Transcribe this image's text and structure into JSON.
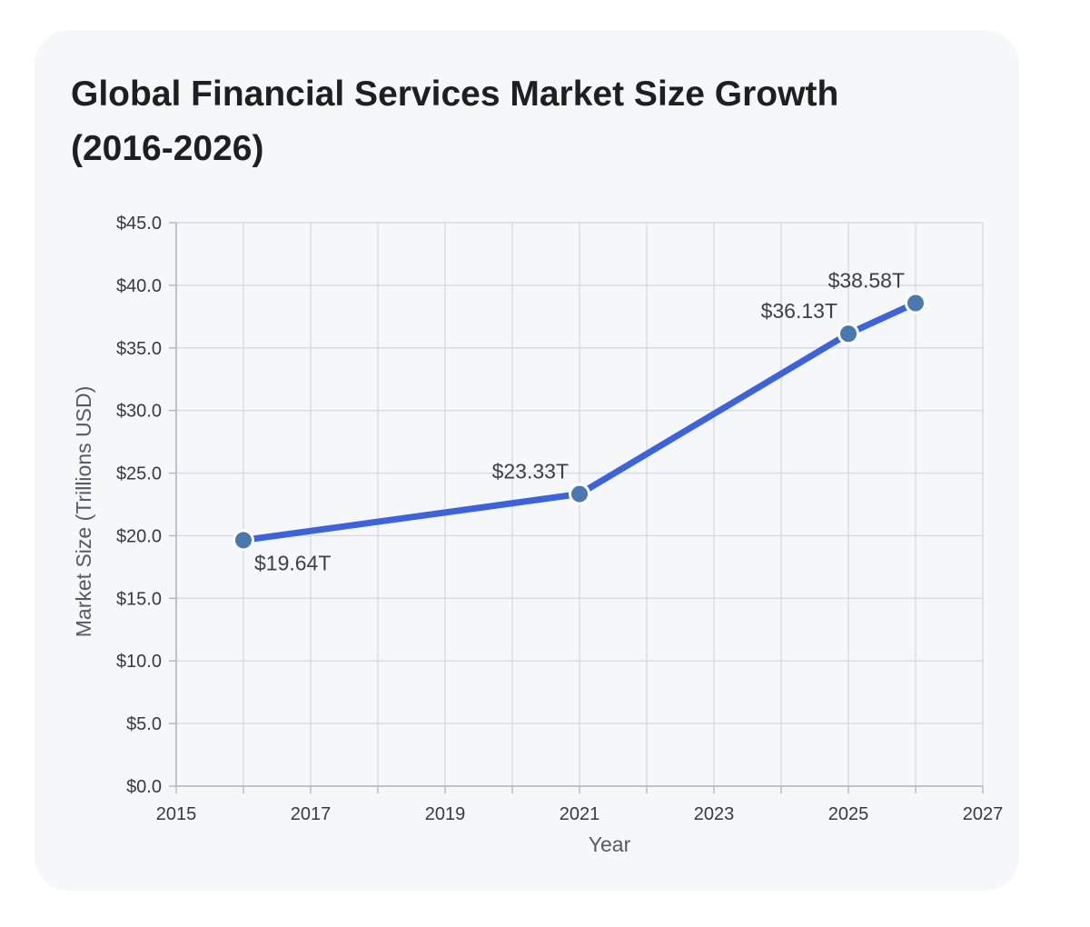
{
  "chart_data": {
    "type": "line",
    "title": "Global Financial Services Market Size Growth (2016-2026)",
    "xlabel": "Year",
    "ylabel": "Market Size (Trillions USD)",
    "xlim": [
      2015,
      2027
    ],
    "ylim": [
      0,
      45
    ],
    "x_ticks": [
      "2015",
      "2017",
      "2019",
      "2021",
      "2023",
      "2025",
      "2027"
    ],
    "x_tick_values": [
      2015,
      2017,
      2019,
      2021,
      2023,
      2025,
      2027
    ],
    "y_ticks": [
      "$0.0",
      "$5.0",
      "$10.0",
      "$15.0",
      "$20.0",
      "$25.0",
      "$30.0",
      "$35.0",
      "$40.0",
      "$45.0"
    ],
    "y_tick_values": [
      0,
      5,
      10,
      15,
      20,
      25,
      30,
      35,
      40,
      45
    ],
    "grid": true,
    "series": [
      {
        "x": [
          2016,
          2021,
          2025,
          2026
        ],
        "y": [
          19.64,
          23.33,
          36.13,
          38.58
        ],
        "labels": [
          "$19.64T",
          "$23.33T",
          "$36.13T",
          "$38.58T"
        ],
        "label_positions": [
          "below-right",
          "above-left",
          "above-left",
          "above-left"
        ],
        "line_color": "#3b62e0",
        "marker_color": "#4a78b0"
      }
    ],
    "colors": {
      "grid": "#d8d9e6",
      "axis": "#b4b6c4"
    }
  }
}
